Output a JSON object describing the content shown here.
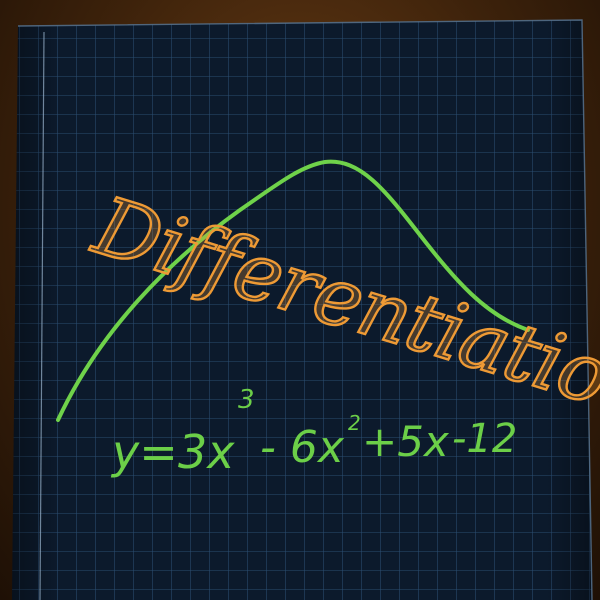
{
  "title": "Differentiation",
  "equation": {
    "lhs": "y=",
    "term1": "3x",
    "exp1": "3",
    "term2": "- 6x",
    "exp2": "2",
    "term3": "+5x",
    "term4": "-12"
  },
  "colors": {
    "paper": "#0c1a2c",
    "grid_line": "#2a4d71",
    "title_orange": "#ee9a35",
    "curve_green": "#6fd24a",
    "equation_green": "#6ccf48",
    "background_wood": "#4a2a0e"
  }
}
